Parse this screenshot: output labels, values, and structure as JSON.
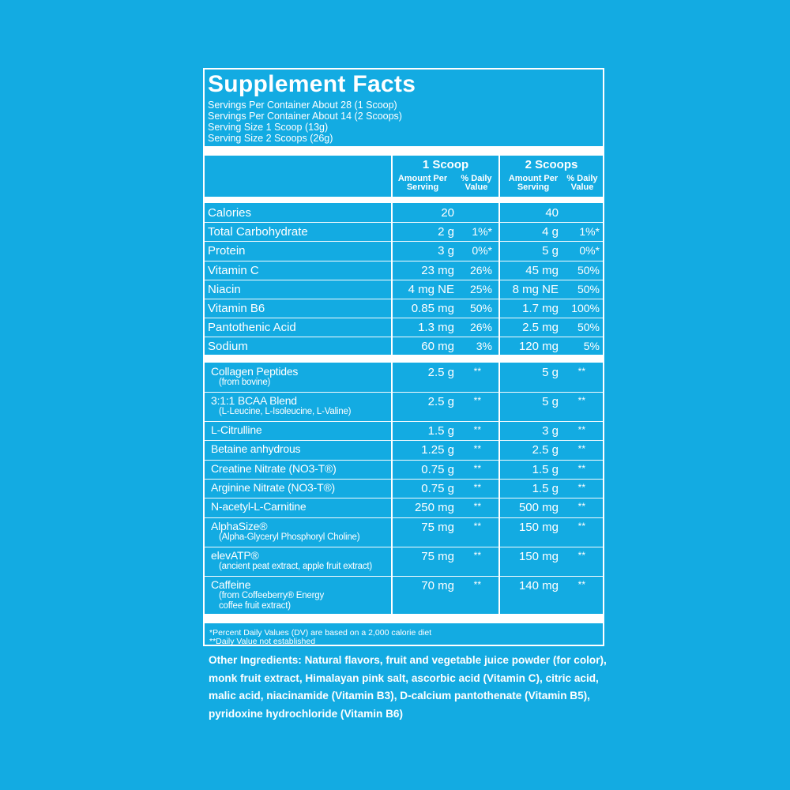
{
  "title": "Supplement Facts",
  "serving_info": [
    "Servings Per Container About 28 (1 Scoop)",
    "Servings Per Container About 14 (2 Scoops)",
    "Serving Size 1 Scoop (13g)",
    "Serving Size 2 Scoops (26g)"
  ],
  "columns": {
    "one": {
      "title": "1 Scoop",
      "amount": "Amount Per Serving",
      "dv": "% Daily Value"
    },
    "two": {
      "title": "2 Scoops",
      "amount": "Amount Per Serving",
      "dv": "% Daily Value"
    }
  },
  "nutrients": [
    {
      "name": "Calories",
      "a1": "20",
      "d1": "",
      "a2": "40",
      "d2": ""
    },
    {
      "name": "Total Carbohydrate",
      "a1": "2 g",
      "d1": "1%*",
      "a2": "4 g",
      "d2": "1%*"
    },
    {
      "name": "Protein",
      "a1": "3 g",
      "d1": "0%*",
      "a2": "5 g",
      "d2": "0%*"
    },
    {
      "name": "Vitamin C",
      "a1": "23 mg",
      "d1": "26%",
      "a2": "45 mg",
      "d2": "50%"
    },
    {
      "name": "Niacin",
      "a1": "4 mg NE",
      "d1": "25%",
      "a2": "8 mg NE",
      "d2": "50%"
    },
    {
      "name": "Vitamin B6",
      "a1": "0.85 mg",
      "d1": "50%",
      "a2": "1.7 mg",
      "d2": "100%"
    },
    {
      "name": "Pantothenic Acid",
      "a1": "1.3 mg",
      "d1": "26%",
      "a2": "2.5 mg",
      "d2": "50%"
    },
    {
      "name": "Sodium",
      "a1": "60 mg",
      "d1": "3%",
      "a2": "120 mg",
      "d2": "5%"
    }
  ],
  "ingredients": [
    {
      "name": "Collagen Peptides",
      "sub": [
        "(from bovine)"
      ],
      "a1": "2.5 g",
      "d1": "**",
      "a2": "5 g",
      "d2": "**"
    },
    {
      "name": "3:1:1 BCAA Blend",
      "sub": [
        "(L-Leucine, L-Isoleucine, L-Valine)"
      ],
      "a1": "2.5 g",
      "d1": "**",
      "a2": "5 g",
      "d2": "**"
    },
    {
      "name": "L-Citrulline",
      "sub": [],
      "a1": "1.5 g",
      "d1": "**",
      "a2": "3 g",
      "d2": "**"
    },
    {
      "name": "Betaine anhydrous",
      "sub": [],
      "a1": "1.25 g",
      "d1": "**",
      "a2": "2.5 g",
      "d2": "**"
    },
    {
      "name": "Creatine Nitrate (NO3-T®)",
      "sub": [],
      "a1": "0.75 g",
      "d1": "**",
      "a2": "1.5 g",
      "d2": "**"
    },
    {
      "name": "Arginine Nitrate (NO3-T®)",
      "sub": [],
      "a1": "0.75 g",
      "d1": "**",
      "a2": "1.5 g",
      "d2": "**"
    },
    {
      "name": "N-acetyl-L-Carnitine",
      "sub": [],
      "a1": "250 mg",
      "d1": "**",
      "a2": "500 mg",
      "d2": "**"
    },
    {
      "name": "AlphaSize®",
      "sub": [
        "(Alpha-Glyceryl Phosphoryl Choline)"
      ],
      "a1": "75 mg",
      "d1": "**",
      "a2": "150 mg",
      "d2": "**"
    },
    {
      "name": "elevATP®",
      "sub": [
        "(ancient peat extract, apple fruit extract)"
      ],
      "a1": "75 mg",
      "d1": "**",
      "a2": "150 mg",
      "d2": "**"
    },
    {
      "name": "Caffeine",
      "sub": [
        "(from Coffeeberry® Energy",
        "coffee fruit extract)"
      ],
      "a1": "70 mg",
      "d1": "**",
      "a2": "140 mg",
      "d2": "**"
    }
  ],
  "footnotes": [
    "*Percent Daily Values (DV) are based on a 2,000 calorie diet",
    "**Daily Value not established"
  ],
  "other_ingredients": "Other Ingredients: Natural flavors, fruit and vegetable juice powder (for color), monk fruit extract, Himalayan pink salt, ascorbic acid (Vitamin C), citric acid, malic acid, niacinamide (Vitamin B3), D-calcium pantothenate (Vitamin B5), pyridoxine hydrochloride (Vitamin B6)",
  "colors": {
    "background": "#13abe2",
    "foreground": "#ffffff"
  }
}
